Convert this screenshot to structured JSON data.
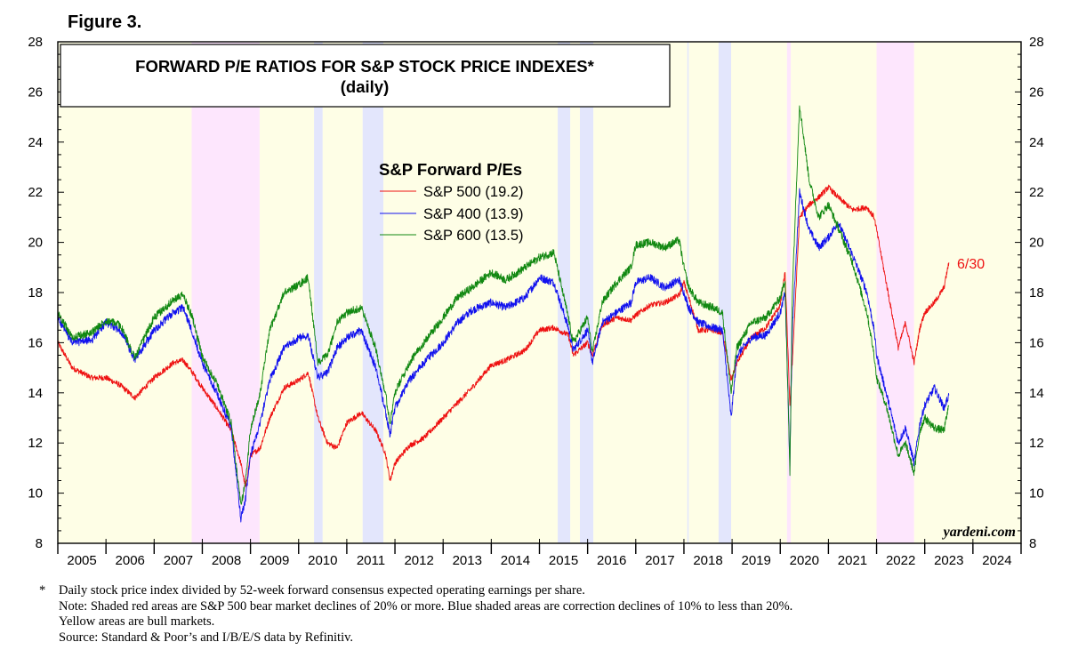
{
  "figure_label": "Figure 3.",
  "chart_data": {
    "type": "line",
    "title": "FORWARD P/E RATIOS FOR S&P STOCK PRICE INDEXES*",
    "subtitle": "(daily)",
    "legend_title": "S&P Forward P/Es",
    "legend_position": "upper-center",
    "watermark": "yardeni.com",
    "end_label": "6/30",
    "ylim": [
      8,
      28
    ],
    "y_ticks": [
      8,
      10,
      12,
      14,
      16,
      18,
      20,
      22,
      24,
      26,
      28
    ],
    "xlim": [
      2005.0,
      2025.0
    ],
    "x_tick_labels": [
      "2005",
      "2006",
      "2007",
      "2008",
      "2009",
      "2010",
      "2011",
      "2012",
      "2013",
      "2014",
      "2015",
      "2016",
      "2017",
      "2018",
      "2019",
      "2020",
      "2021",
      "2022",
      "2023",
      "2024"
    ],
    "grid": false,
    "colors": {
      "bull": "#fefee6",
      "bear": "#fde6fd",
      "correction": "#e3e6fc",
      "sp500": "#ee1111",
      "sp400": "#1111ee",
      "sp600": "#118811"
    },
    "shaded_periods": [
      {
        "kind": "bull",
        "start": 2005.0,
        "end": 2007.78
      },
      {
        "kind": "bear",
        "start": 2007.78,
        "end": 2009.19
      },
      {
        "kind": "bull",
        "start": 2009.19,
        "end": 2010.32
      },
      {
        "kind": "correction",
        "start": 2010.32,
        "end": 2010.5
      },
      {
        "kind": "bull",
        "start": 2010.5,
        "end": 2011.33
      },
      {
        "kind": "correction",
        "start": 2011.33,
        "end": 2011.76
      },
      {
        "kind": "bull",
        "start": 2011.76,
        "end": 2015.38
      },
      {
        "kind": "correction",
        "start": 2015.38,
        "end": 2015.64
      },
      {
        "kind": "bull",
        "start": 2015.64,
        "end": 2015.84
      },
      {
        "kind": "correction",
        "start": 2015.84,
        "end": 2016.12
      },
      {
        "kind": "bull",
        "start": 2016.12,
        "end": 2018.07
      },
      {
        "kind": "correction",
        "start": 2018.07,
        "end": 2018.1
      },
      {
        "kind": "bull",
        "start": 2018.1,
        "end": 2018.72
      },
      {
        "kind": "correction",
        "start": 2018.72,
        "end": 2018.98
      },
      {
        "kind": "bull",
        "start": 2018.98,
        "end": 2020.14
      },
      {
        "kind": "bear",
        "start": 2020.14,
        "end": 2020.22
      },
      {
        "kind": "bull",
        "start": 2020.22,
        "end": 2022.0
      },
      {
        "kind": "bear",
        "start": 2022.0,
        "end": 2022.78
      },
      {
        "kind": "bull",
        "start": 2022.78,
        "end": 2025.0
      }
    ],
    "series": [
      {
        "name": "S&P 500 (19.2)",
        "x": [
          2005.0,
          2005.3,
          2005.7,
          2006.0,
          2006.3,
          2006.6,
          2007.0,
          2007.4,
          2007.6,
          2007.8,
          2008.0,
          2008.3,
          2008.6,
          2008.8,
          2008.9,
          2009.0,
          2009.2,
          2009.4,
          2009.7,
          2010.0,
          2010.2,
          2010.4,
          2010.6,
          2010.8,
          2011.0,
          2011.3,
          2011.6,
          2011.8,
          2011.9,
          2012.0,
          2012.3,
          2012.6,
          2013.0,
          2013.3,
          2013.6,
          2014.0,
          2014.3,
          2014.7,
          2015.0,
          2015.3,
          2015.6,
          2015.7,
          2016.0,
          2016.1,
          2016.3,
          2016.6,
          2016.9,
          2017.0,
          2017.3,
          2017.6,
          2017.9,
          2018.0,
          2018.1,
          2018.3,
          2018.6,
          2018.8,
          2018.98,
          2019.1,
          2019.4,
          2019.7,
          2020.0,
          2020.1,
          2020.2,
          2020.25,
          2020.4,
          2020.6,
          2020.8,
          2021.0,
          2021.2,
          2021.5,
          2021.8,
          2021.95,
          2022.0,
          2022.2,
          2022.45,
          2022.6,
          2022.78,
          2022.9,
          2023.0,
          2023.2,
          2023.4,
          2023.5
        ],
        "values": [
          16.0,
          15.0,
          14.6,
          14.6,
          14.3,
          13.8,
          14.6,
          15.2,
          15.3,
          14.8,
          14.2,
          13.4,
          12.5,
          11.2,
          10.2,
          11.5,
          11.8,
          13.0,
          14.2,
          14.5,
          14.8,
          13.0,
          12.0,
          11.8,
          12.8,
          13.2,
          12.5,
          11.6,
          10.5,
          11.2,
          11.9,
          12.2,
          13.0,
          13.6,
          14.2,
          15.1,
          15.3,
          15.7,
          16.5,
          16.6,
          16.3,
          15.5,
          16.0,
          15.5,
          16.7,
          17.0,
          16.9,
          17.1,
          17.5,
          17.6,
          17.9,
          18.4,
          17.8,
          16.5,
          16.5,
          16.4,
          14.5,
          15.2,
          16.2,
          16.6,
          17.5,
          18.8,
          13.5,
          15.2,
          21.0,
          21.5,
          21.8,
          22.2,
          21.8,
          21.3,
          21.4,
          21.0,
          20.5,
          18.4,
          15.8,
          16.8,
          15.2,
          16.6,
          17.2,
          17.6,
          18.2,
          19.2
        ]
      },
      {
        "name": "S&P 400 (13.9)",
        "x": [
          2005.0,
          2005.3,
          2005.7,
          2006.0,
          2006.3,
          2006.6,
          2007.0,
          2007.4,
          2007.6,
          2007.8,
          2008.0,
          2008.3,
          2008.6,
          2008.8,
          2008.9,
          2009.0,
          2009.2,
          2009.4,
          2009.7,
          2010.0,
          2010.2,
          2010.4,
          2010.6,
          2010.8,
          2011.0,
          2011.3,
          2011.6,
          2011.8,
          2011.9,
          2012.0,
          2012.3,
          2012.6,
          2013.0,
          2013.3,
          2013.6,
          2014.0,
          2014.3,
          2014.7,
          2015.0,
          2015.3,
          2015.6,
          2015.7,
          2016.0,
          2016.1,
          2016.3,
          2016.6,
          2016.9,
          2017.0,
          2017.3,
          2017.6,
          2017.9,
          2018.0,
          2018.1,
          2018.3,
          2018.6,
          2018.8,
          2018.98,
          2019.1,
          2019.4,
          2019.7,
          2020.0,
          2020.1,
          2020.2,
          2020.25,
          2020.4,
          2020.6,
          2020.8,
          2021.0,
          2021.2,
          2021.5,
          2021.8,
          2021.95,
          2022.0,
          2022.2,
          2022.45,
          2022.6,
          2022.78,
          2022.9,
          2023.0,
          2023.2,
          2023.4,
          2023.5
        ],
        "values": [
          17.0,
          16.0,
          16.1,
          16.8,
          16.5,
          15.3,
          16.5,
          17.2,
          17.4,
          16.4,
          15.2,
          14.0,
          12.6,
          9.0,
          9.8,
          11.5,
          12.8,
          14.5,
          15.8,
          16.2,
          16.3,
          14.6,
          14.8,
          15.8,
          16.2,
          16.5,
          15.0,
          13.3,
          12.3,
          13.4,
          14.5,
          15.2,
          16.0,
          16.8,
          17.3,
          17.6,
          17.4,
          17.8,
          18.6,
          18.4,
          16.6,
          15.7,
          16.5,
          15.2,
          16.8,
          17.2,
          17.6,
          18.4,
          18.6,
          18.2,
          18.5,
          18.0,
          17.4,
          16.8,
          16.6,
          16.5,
          13.0,
          15.5,
          16.2,
          16.3,
          17.2,
          18.0,
          11.2,
          16.5,
          22.0,
          20.5,
          19.8,
          20.2,
          20.8,
          19.5,
          18.0,
          16.5,
          15.5,
          14.0,
          12.0,
          12.6,
          11.2,
          12.8,
          13.5,
          14.2,
          13.4,
          13.9
        ]
      },
      {
        "name": "S&P 600 (13.5)",
        "x": [
          2005.0,
          2005.3,
          2005.7,
          2006.0,
          2006.3,
          2006.6,
          2007.0,
          2007.4,
          2007.6,
          2007.8,
          2008.0,
          2008.3,
          2008.6,
          2008.8,
          2008.9,
          2009.0,
          2009.2,
          2009.4,
          2009.7,
          2010.0,
          2010.2,
          2010.4,
          2010.6,
          2010.8,
          2011.0,
          2011.3,
          2011.6,
          2011.8,
          2011.9,
          2012.0,
          2012.3,
          2012.6,
          2013.0,
          2013.3,
          2013.6,
          2014.0,
          2014.3,
          2014.7,
          2015.0,
          2015.3,
          2015.6,
          2015.7,
          2016.0,
          2016.1,
          2016.3,
          2016.6,
          2016.9,
          2017.0,
          2017.3,
          2017.6,
          2017.9,
          2018.0,
          2018.1,
          2018.3,
          2018.6,
          2018.8,
          2018.98,
          2019.1,
          2019.4,
          2019.7,
          2020.0,
          2020.1,
          2020.2,
          2020.25,
          2020.4,
          2020.6,
          2020.8,
          2021.0,
          2021.2,
          2021.5,
          2021.8,
          2021.95,
          2022.0,
          2022.2,
          2022.45,
          2022.6,
          2022.78,
          2022.9,
          2023.0,
          2023.2,
          2023.4,
          2023.5
        ],
        "values": [
          17.2,
          16.2,
          16.4,
          16.9,
          16.7,
          15.4,
          17.0,
          17.7,
          17.9,
          17.0,
          15.4,
          14.4,
          12.8,
          9.5,
          10.5,
          12.5,
          14.0,
          16.5,
          18.0,
          18.3,
          18.6,
          15.2,
          15.5,
          16.8,
          17.2,
          17.4,
          15.8,
          14.0,
          12.8,
          14.0,
          15.2,
          16.0,
          17.0,
          17.8,
          18.2,
          18.8,
          18.5,
          19.0,
          19.4,
          19.6,
          17.0,
          16.0,
          17.0,
          15.6,
          17.6,
          18.4,
          19.0,
          19.9,
          20.0,
          19.8,
          20.1,
          19.0,
          18.2,
          17.6,
          17.4,
          17.2,
          14.0,
          15.8,
          16.8,
          17.0,
          17.8,
          18.5,
          10.8,
          18.0,
          25.5,
          22.5,
          21.0,
          21.5,
          20.6,
          19.2,
          17.2,
          15.5,
          14.6,
          13.5,
          11.5,
          12.0,
          10.8,
          12.5,
          13.0,
          12.6,
          12.5,
          13.5
        ]
      }
    ]
  },
  "footnotes": {
    "marker": "*",
    "lines": [
      "Daily stock price index divided by 52-week forward consensus expected operating earnings per share.",
      "Note: Shaded red areas are S&P 500 bear market declines of 20% or more.  Blue shaded areas are correction declines of 10% to less than 20%.",
      "Yellow areas are bull markets.",
      "Source: Standard & Poor’s and I/B/E/S data by Refinitiv."
    ]
  }
}
